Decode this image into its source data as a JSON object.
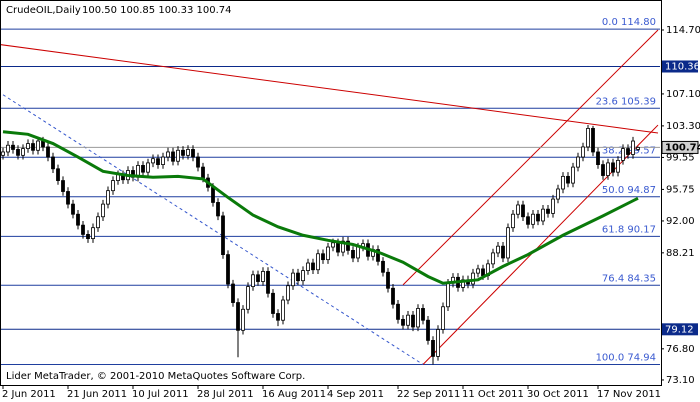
{
  "chart_data": {
    "type": "candlestick",
    "title": "CrudeOIL,Daily",
    "subtitle": "100.50 100.85 100.33 100.74",
    "footer": "Lider MetaTrader, © 2001-2010 MetaQuotes Software Corp.",
    "categories": [
      "2 Jun 2011",
      null,
      null,
      null,
      null,
      null,
      null,
      null,
      null,
      null,
      null,
      null,
      null,
      "21 Jun 2011",
      null,
      null,
      null,
      null,
      null,
      null,
      null,
      null,
      null,
      null,
      null,
      null,
      "10 Jul 2011",
      null,
      null,
      null,
      null,
      null,
      null,
      null,
      null,
      null,
      null,
      null,
      null,
      "28 Jul 2011",
      null,
      null,
      null,
      null,
      null,
      null,
      null,
      null,
      null,
      null,
      null,
      null,
      "16 Aug 2011",
      null,
      null,
      null,
      null,
      null,
      null,
      null,
      null,
      null,
      null,
      null,
      null,
      "4 Sep 2011",
      null,
      null,
      null,
      null,
      null,
      null,
      null,
      null,
      null,
      null,
      null,
      null,
      null,
      "22 Sep 2011",
      null,
      null,
      null,
      null,
      null,
      null,
      null,
      null,
      null,
      null,
      null,
      null,
      "11 Oct 2011",
      null,
      null,
      null,
      null,
      null,
      null,
      null,
      null,
      null,
      null,
      null,
      null,
      "30 Oct 2011",
      null,
      null,
      null,
      null,
      null,
      null,
      null,
      null,
      null,
      null,
      null,
      null,
      null,
      "17 Nov 2011",
      null,
      null,
      null,
      null,
      null,
      null,
      null,
      null
    ],
    "open": [
      99.8,
      100.2,
      101.0,
      100.5,
      99.8,
      100.6,
      101.2,
      100.4,
      101.5,
      100.8,
      99.6,
      98.2,
      96.8,
      95.5,
      94.0,
      92.8,
      91.5,
      90.4,
      89.9,
      91.2,
      92.5,
      94.0,
      95.6,
      96.8,
      97.5,
      96.9,
      98.0,
      97.2,
      98.6,
      97.8,
      98.9,
      99.4,
      98.7,
      99.6,
      100.2,
      99.1,
      100.4,
      99.8,
      100.5,
      99.6,
      98.4,
      97.1,
      96.0,
      94.2,
      92.6,
      88.0,
      84.5,
      82.3,
      79.0,
      81.5,
      84.2,
      85.6,
      84.8,
      86.0,
      83.4,
      81.0,
      80.2,
      82.6,
      84.3,
      85.8,
      84.9,
      86.1,
      87.0,
      86.2,
      88.1,
      87.4,
      88.9,
      89.4,
      88.3,
      89.6,
      88.5,
      87.6,
      88.9,
      89.3,
      87.8,
      88.6,
      87.2,
      85.9,
      84.0,
      82.1,
      80.3,
      79.6,
      80.8,
      79.4,
      81.6,
      80.2,
      77.8,
      75.9,
      79.1,
      81.8,
      84.6,
      85.3,
      84.1,
      85.0,
      84.5,
      85.8,
      86.3,
      85.5,
      86.9,
      88.2,
      89.0,
      87.6,
      91.2,
      92.8,
      93.9,
      92.5,
      91.6,
      92.8,
      92.0,
      93.4,
      92.9,
      94.6,
      95.8,
      97.3,
      96.5,
      98.4,
      99.6,
      100.8,
      103.0,
      100.2,
      98.7,
      97.4,
      98.9,
      97.8,
      99.2,
      100.6,
      99.9,
      100.5
    ],
    "high": [
      100.7,
      101.5,
      101.5,
      101.0,
      101.1,
      101.7,
      101.7,
      102.0,
      102.0,
      101.3,
      100.1,
      98.7,
      97.3,
      96.0,
      94.5,
      93.3,
      92.0,
      90.9,
      91.7,
      93.0,
      94.5,
      96.1,
      97.3,
      98.0,
      98.0,
      98.5,
      98.5,
      99.1,
      99.1,
      99.4,
      99.9,
      99.9,
      100.1,
      100.7,
      100.7,
      100.9,
      100.9,
      101.0,
      101.0,
      100.1,
      98.9,
      97.6,
      96.5,
      94.7,
      93.1,
      88.5,
      85.0,
      82.8,
      82.0,
      84.7,
      86.1,
      86.1,
      86.5,
      86.5,
      83.9,
      81.5,
      83.1,
      84.8,
      86.3,
      86.3,
      86.6,
      87.5,
      87.5,
      88.6,
      88.6,
      89.4,
      89.9,
      89.9,
      90.1,
      90.1,
      89.0,
      89.4,
      89.8,
      89.8,
      89.1,
      89.1,
      87.7,
      86.4,
      84.5,
      82.6,
      80.8,
      81.3,
      81.3,
      82.1,
      82.1,
      80.7,
      78.3,
      79.6,
      82.3,
      85.1,
      85.8,
      85.8,
      85.5,
      85.5,
      86.3,
      86.8,
      86.8,
      87.4,
      88.7,
      89.5,
      89.5,
      91.7,
      93.3,
      94.4,
      94.4,
      93.0,
      93.3,
      93.3,
      93.9,
      93.9,
      95.1,
      96.3,
      97.8,
      97.8,
      98.9,
      100.1,
      101.3,
      103.4,
      103.3,
      100.7,
      99.2,
      99.4,
      99.4,
      99.7,
      101.1,
      101.1,
      102.0,
      100.85
    ],
    "low": [
      99.3,
      99.7,
      100.0,
      99.3,
      99.3,
      100.1,
      99.9,
      99.9,
      100.3,
      99.1,
      97.7,
      96.3,
      95.0,
      93.5,
      92.3,
      91.0,
      89.9,
      89.4,
      89.4,
      90.7,
      92.0,
      93.5,
      95.1,
      96.3,
      96.4,
      96.4,
      96.7,
      96.7,
      97.3,
      97.3,
      98.4,
      98.2,
      98.2,
      99.1,
      98.6,
      98.6,
      99.3,
      99.3,
      99.1,
      97.9,
      96.6,
      95.5,
      93.7,
      92.1,
      87.5,
      84.0,
      81.8,
      75.8,
      78.5,
      81.0,
      83.7,
      84.3,
      84.3,
      82.9,
      80.5,
      79.5,
      79.7,
      82.1,
      83.8,
      84.4,
      84.4,
      85.6,
      85.7,
      85.7,
      86.9,
      86.9,
      88.4,
      87.8,
      87.8,
      88.0,
      87.1,
      87.1,
      88.4,
      87.3,
      87.3,
      86.7,
      85.4,
      83.5,
      81.6,
      79.8,
      79.1,
      79.1,
      78.9,
      78.9,
      79.7,
      77.3,
      74.94,
      75.4,
      78.6,
      81.3,
      84.1,
      83.6,
      83.6,
      84.0,
      84.0,
      85.3,
      85.0,
      85.0,
      86.4,
      87.7,
      87.1,
      87.1,
      90.7,
      92.3,
      92.0,
      91.1,
      91.1,
      91.5,
      91.5,
      92.4,
      92.4,
      94.1,
      95.3,
      96.0,
      96.0,
      97.9,
      99.1,
      100.3,
      99.7,
      98.2,
      96.9,
      96.9,
      97.3,
      97.3,
      98.7,
      99.4,
      99.4,
      100.33
    ],
    "close": [
      100.2,
      101.0,
      100.5,
      99.8,
      100.6,
      101.2,
      100.4,
      101.5,
      100.8,
      99.6,
      98.2,
      96.8,
      95.5,
      94.0,
      92.8,
      91.5,
      90.4,
      89.9,
      91.2,
      92.5,
      94.0,
      95.6,
      96.8,
      97.5,
      96.9,
      98.0,
      97.2,
      98.6,
      97.8,
      98.9,
      99.4,
      98.7,
      99.6,
      100.2,
      99.1,
      100.4,
      99.8,
      100.5,
      99.6,
      98.4,
      97.1,
      96.0,
      94.2,
      92.6,
      88.0,
      84.5,
      82.3,
      79.0,
      81.5,
      84.2,
      85.6,
      84.8,
      86.0,
      83.4,
      81.0,
      80.2,
      82.6,
      84.3,
      85.8,
      84.9,
      86.1,
      87.0,
      86.2,
      88.1,
      87.4,
      88.9,
      89.4,
      88.3,
      89.6,
      88.5,
      87.6,
      88.9,
      89.3,
      87.8,
      88.6,
      87.2,
      85.9,
      84.0,
      82.1,
      80.3,
      79.6,
      80.8,
      79.4,
      81.6,
      80.2,
      77.8,
      75.9,
      79.1,
      81.8,
      84.6,
      85.3,
      84.1,
      85.0,
      84.5,
      85.8,
      86.3,
      85.5,
      86.9,
      88.2,
      89.0,
      87.6,
      91.2,
      92.8,
      93.9,
      92.5,
      91.6,
      92.8,
      92.0,
      93.4,
      92.9,
      94.6,
      95.8,
      97.3,
      96.5,
      98.4,
      99.6,
      100.8,
      103.0,
      100.2,
      98.7,
      97.4,
      98.9,
      97.8,
      99.2,
      100.6,
      99.9,
      101.5,
      100.74
    ],
    "up_color": "#ffffff",
    "down_color": "#000000",
    "wick_color": "#000000",
    "moving_average": {
      "color": "#0a7a0a",
      "x": [
        0,
        5,
        10,
        15,
        20,
        25,
        30,
        35,
        40,
        45,
        50,
        55,
        60,
        65,
        70,
        75,
        80,
        85,
        88,
        95,
        100,
        105,
        112,
        120,
        127
      ],
      "values": [
        102.6,
        102.3,
        101.2,
        99.6,
        97.9,
        97.4,
        97.2,
        97.3,
        97.0,
        94.8,
        92.7,
        91.3,
        90.3,
        89.7,
        89.2,
        88.3,
        87.1,
        85.4,
        84.6,
        85.0,
        86.6,
        88.0,
        90.3,
        92.6,
        94.7
      ]
    },
    "trendlines": [
      {
        "x": [
          -1,
          131
        ],
        "values": [
          113.0,
          102.45
        ],
        "color": "#cc0000",
        "style": "solid"
      },
      {
        "x": [
          84,
          131
        ],
        "values": [
          74.94,
          103.4
        ],
        "color": "#cc0000",
        "style": "solid"
      },
      {
        "x": [
          80,
          131
        ],
        "values": [
          84.4,
          114.7
        ],
        "color": "#cc0000",
        "style": "solid"
      },
      {
        "x": [
          0,
          84
        ],
        "values": [
          107.0,
          74.94
        ],
        "color": "#3355cc",
        "style": "dashed"
      }
    ],
    "fib_color": "#1f3f9f",
    "fib_levels": [
      {
        "value": 114.8,
        "label": "0.0 114.80"
      },
      {
        "value": 105.39,
        "label": "23.6 105.39"
      },
      {
        "value": 99.57,
        "label": "38.2 99.57"
      },
      {
        "value": 94.87,
        "label": "50.0 94.87"
      },
      {
        "value": 90.17,
        "label": "61.8 90.17"
      },
      {
        "value": 84.35,
        "label": "76.4 84.35"
      },
      {
        "value": 74.94,
        "label": "100.0 74.94"
      }
    ],
    "hline_color": "#0b2a8a",
    "hlines": [
      {
        "value": 110.36,
        "label": "110.36"
      },
      {
        "value": 79.12,
        "label": "79.12"
      }
    ],
    "last_price": {
      "value": 100.74,
      "label": "100.74"
    },
    "xlim": [
      -0.6,
      131.4
    ],
    "ylim": [
      72.5,
      116.6
    ],
    "yticks": [
      {
        "value": 114.7,
        "label": "114.70"
      },
      {
        "value": 107.1,
        "label": "107.10"
      },
      {
        "value": 103.3,
        "label": "103.30"
      },
      99.55,
      95.75,
      {
        "value": 92,
        "label": "92.00"
      },
      88.21,
      {
        "value": 76.8,
        "label": "76.80"
      },
      {
        "value": 73.1,
        "label": "73.10"
      }
    ]
  }
}
